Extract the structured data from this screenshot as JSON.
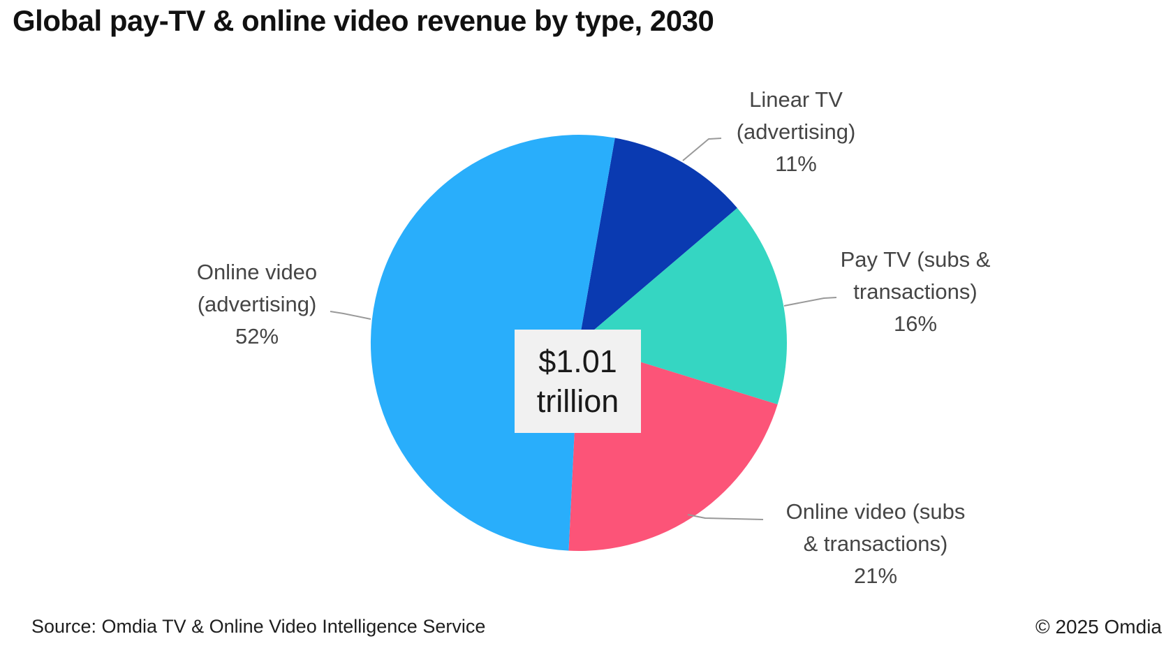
{
  "title": "Global pay-TV & online video revenue by type, 2030",
  "center_label": {
    "line1": "$1.01",
    "line2": "trillion"
  },
  "footer": {
    "source": "Source: Omdia TV & Online Video Intelligence Service",
    "copyright": "© 2025 Omdia"
  },
  "chart_data": {
    "type": "pie",
    "title": "Global pay-TV & online video revenue by type, 2030",
    "total_label": "$1.01 trillion",
    "start_angle_deg": 10,
    "direction": "clockwise",
    "legend_position": "outside-labels-with-leader-lines",
    "slices": [
      {
        "name": "Linear TV (advertising)",
        "line1": "Linear TV",
        "line2": "(advertising)",
        "value": 11,
        "pct_label": "11%",
        "color": "#0A3AB1"
      },
      {
        "name": "Pay TV (subs & transactions)",
        "line1": "Pay TV (subs &",
        "line2": "transactions)",
        "value": 16,
        "pct_label": "16%",
        "color": "#35D6C2"
      },
      {
        "name": "Online video (subs & transactions)",
        "line1": "Online video (subs",
        "line2": "& transactions)",
        "value": 21,
        "pct_label": "21%",
        "color": "#FC5478"
      },
      {
        "name": "Online video (advertising)",
        "line1": "Online video",
        "line2": "(advertising)",
        "value": 52,
        "pct_label": "52%",
        "color": "#29AEFB"
      }
    ],
    "leader_line_color": "#999999",
    "label_color": "#454545",
    "center_box_bg": "#F1F1F1"
  }
}
